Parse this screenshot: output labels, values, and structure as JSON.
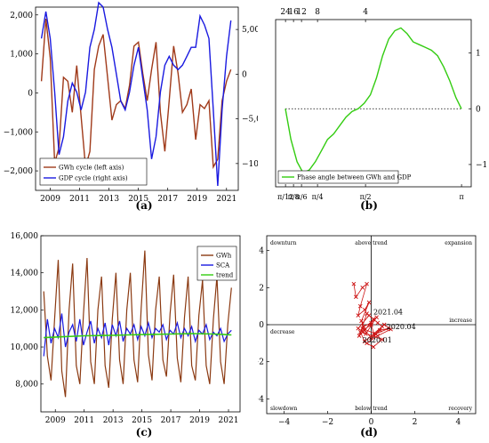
{
  "chart_data": [
    {
      "id": "a",
      "type": "line",
      "caption": "(a)",
      "x_ticks": [
        "2009",
        "2011",
        "2013",
        "2015",
        "2017",
        "2019",
        "2021"
      ],
      "x_range": [
        2008,
        2021.8
      ],
      "y_left_ticks": [
        "2,000",
        "1,000",
        "0",
        "−1,000",
        "−2,000"
      ],
      "y_left_range": [
        -2500,
        2200
      ],
      "y_right_ticks": [
        "5,000",
        "0",
        "−5,000",
        "−10,000"
      ],
      "y_right_range": [
        -13000,
        7500
      ],
      "legend": [
        "GWh cycle (left axis)",
        "GDP cycle (right axis)"
      ],
      "legend_position": "bottom-left",
      "colors": [
        "#a03a1a",
        "#1a1ae0"
      ],
      "series": [
        {
          "name": "GWh cycle (left axis)",
          "axis": "left",
          "x": [
            2008.4,
            2008.7,
            2009.0,
            2009.3,
            2009.6,
            2009.9,
            2010.2,
            2010.5,
            2010.8,
            2011.1,
            2011.4,
            2011.7,
            2012.0,
            2012.3,
            2012.6,
            2012.9,
            2013.2,
            2013.5,
            2013.8,
            2014.1,
            2014.4,
            2014.7,
            2015.0,
            2015.3,
            2015.6,
            2015.9,
            2016.2,
            2016.5,
            2016.8,
            2017.1,
            2017.4,
            2017.7,
            2018.0,
            2018.3,
            2018.6,
            2018.9,
            2019.2,
            2019.5,
            2019.8,
            2020.1,
            2020.4,
            2020.7,
            2021.0,
            2021.3
          ],
          "y": [
            300,
            1900,
            900,
            -1800,
            -1400,
            400,
            300,
            -500,
            700,
            -600,
            -1900,
            -1500,
            600,
            1200,
            1500,
            400,
            -700,
            -300,
            -200,
            -400,
            200,
            1200,
            1300,
            500,
            -200,
            600,
            1300,
            -500,
            -1500,
            -200,
            1200,
            500,
            -500,
            -300,
            100,
            -1200,
            -300,
            -400,
            -200,
            -1900,
            -1700,
            -200,
            300,
            600
          ]
        },
        {
          "name": "GDP cycle (right axis)",
          "axis": "right",
          "x": [
            2008.4,
            2008.7,
            2009.0,
            2009.3,
            2009.6,
            2009.9,
            2010.2,
            2010.5,
            2010.8,
            2011.1,
            2011.4,
            2011.7,
            2012.0,
            2012.3,
            2012.6,
            2012.9,
            2013.2,
            2013.5,
            2013.8,
            2014.1,
            2014.4,
            2014.7,
            2015.0,
            2015.3,
            2015.6,
            2015.9,
            2016.2,
            2016.5,
            2016.8,
            2017.1,
            2017.4,
            2017.7,
            2018.0,
            2018.3,
            2018.6,
            2018.9,
            2019.2,
            2019.5,
            2019.8,
            2020.1,
            2020.4,
            2020.7,
            2021.0,
            2021.3
          ],
          "y": [
            4000,
            7000,
            4000,
            -2000,
            -9000,
            -7000,
            -3000,
            -1000,
            -2000,
            -4000,
            -2000,
            3000,
            5000,
            8000,
            7500,
            5000,
            3000,
            0,
            -3000,
            -4000,
            -2000,
            1000,
            3000,
            -500,
            -4000,
            -9500,
            -7000,
            -2000,
            1000,
            2000,
            1000,
            500,
            1000,
            2000,
            3000,
            3000,
            6500,
            5500,
            4000,
            -4000,
            -12500,
            -4000,
            2000,
            6000
          ]
        }
      ]
    },
    {
      "id": "b",
      "type": "line",
      "caption": "(b)",
      "x_ticks": [
        "π/12",
        "π/8",
        "π/6",
        "π/4",
        "π/2",
        "π"
      ],
      "x_tick_values": [
        0.2618,
        0.3927,
        0.5236,
        0.7854,
        1.5708,
        3.1416
      ],
      "x_range": [
        0.1,
        3.3
      ],
      "top_ticks": [
        "24",
        "16",
        "12",
        "8",
        "4"
      ],
      "y_ticks": [
        "1",
        "0",
        "−1"
      ],
      "y_range": [
        -1.4,
        1.6
      ],
      "zero_line": true,
      "legend": [
        "Phase angle between GWh and GDP"
      ],
      "legend_position": "bottom-left",
      "colors": [
        "#33cc11"
      ],
      "series": [
        {
          "name": "Phase angle between GWh and GDP",
          "x": [
            0.26,
            0.35,
            0.45,
            0.55,
            0.65,
            0.75,
            0.85,
            0.95,
            1.05,
            1.15,
            1.25,
            1.35,
            1.45,
            1.55,
            1.65,
            1.75,
            1.85,
            1.95,
            2.05,
            2.15,
            2.25,
            2.35,
            2.45,
            2.55,
            2.65,
            2.75,
            2.85,
            2.95,
            3.05,
            3.14
          ],
          "y": [
            0.0,
            -0.55,
            -0.95,
            -1.15,
            -1.1,
            -0.95,
            -0.75,
            -0.55,
            -0.45,
            -0.3,
            -0.15,
            -0.05,
            0.0,
            0.1,
            0.25,
            0.55,
            0.95,
            1.25,
            1.4,
            1.45,
            1.35,
            1.2,
            1.15,
            1.1,
            1.05,
            0.95,
            0.75,
            0.5,
            0.2,
            0.0
          ]
        }
      ]
    },
    {
      "id": "c",
      "type": "line",
      "caption": "(c)",
      "x_ticks": [
        "2009",
        "2011",
        "2013",
        "2015",
        "2017",
        "2019",
        "2021"
      ],
      "x_range": [
        2008,
        2021.8
      ],
      "y_ticks": [
        "16,000",
        "14,000",
        "12,000",
        "10,000",
        "8,000"
      ],
      "y_range": [
        6500,
        16000
      ],
      "legend": [
        "GWh",
        "SCA",
        "trend"
      ],
      "legend_position": "top-right",
      "colors": [
        "#8b3a12",
        "#1a1ae0",
        "#33cc11"
      ],
      "series": [
        {
          "name": "GWh",
          "x": [
            2008.2,
            2008.45,
            2008.7,
            2008.95,
            2009.2,
            2009.45,
            2009.7,
            2009.95,
            2010.2,
            2010.45,
            2010.7,
            2010.95,
            2011.2,
            2011.45,
            2011.7,
            2011.95,
            2012.2,
            2012.45,
            2012.7,
            2012.95,
            2013.2,
            2013.45,
            2013.7,
            2013.95,
            2014.2,
            2014.45,
            2014.7,
            2014.95,
            2015.2,
            2015.45,
            2015.7,
            2015.95,
            2016.2,
            2016.45,
            2016.7,
            2016.95,
            2017.2,
            2017.45,
            2017.7,
            2017.95,
            2018.2,
            2018.45,
            2018.7,
            2018.95,
            2019.2,
            2019.45,
            2019.7,
            2019.95,
            2020.2,
            2020.45,
            2020.7,
            2020.95,
            2021.2
          ],
          "y": [
            13000,
            9500,
            8200,
            11500,
            14700,
            8700,
            7300,
            12000,
            14500,
            9000,
            8000,
            11800,
            14800,
            9200,
            8000,
            12000,
            13800,
            9000,
            7800,
            11500,
            14000,
            9300,
            8000,
            12000,
            14000,
            9300,
            8100,
            12100,
            15200,
            9600,
            8200,
            12000,
            13800,
            9300,
            8400,
            11800,
            13900,
            9400,
            8100,
            11600,
            13800,
            9000,
            8200,
            11700,
            13600,
            9000,
            8000,
            11500,
            13800,
            9200,
            8000,
            11200,
            13200
          ]
        },
        {
          "name": "SCA",
          "x": [
            2008.2,
            2008.45,
            2008.7,
            2008.95,
            2009.2,
            2009.45,
            2009.7,
            2009.95,
            2010.2,
            2010.45,
            2010.7,
            2010.95,
            2011.2,
            2011.45,
            2011.7,
            2011.95,
            2012.2,
            2012.45,
            2012.7,
            2012.95,
            2013.2,
            2013.45,
            2013.7,
            2013.95,
            2014.2,
            2014.45,
            2014.7,
            2014.95,
            2015.2,
            2015.45,
            2015.7,
            2015.95,
            2016.2,
            2016.45,
            2016.7,
            2016.95,
            2017.2,
            2017.45,
            2017.7,
            2017.95,
            2018.2,
            2018.45,
            2018.7,
            2018.95,
            2019.2,
            2019.45,
            2019.7,
            2019.95,
            2020.2,
            2020.45,
            2020.7,
            2020.95,
            2021.2
          ],
          "y": [
            9500,
            11500,
            10200,
            11000,
            10500,
            11800,
            10000,
            10800,
            11200,
            10300,
            11500,
            10100,
            10800,
            11400,
            10200,
            11000,
            10500,
            11300,
            10100,
            11200,
            10600,
            11400,
            10300,
            11000,
            10700,
            11200,
            10400,
            11100,
            10600,
            11300,
            10500,
            11000,
            10800,
            11200,
            10400,
            10900,
            10700,
            11300,
            10500,
            11000,
            10600,
            11100,
            10300,
            10900,
            10700,
            11200,
            10400,
            10800,
            10600,
            11000,
            10300,
            10700,
            10900
          ]
        },
        {
          "name": "trend",
          "x": [
            2008.2,
            2009.5,
            2011.0,
            2012.5,
            2014.0,
            2015.5,
            2017.0,
            2018.5,
            2020.0,
            2021.2
          ],
          "y": [
            10500,
            10550,
            10600,
            10620,
            10650,
            10680,
            10700,
            10720,
            10700,
            10650
          ]
        }
      ]
    },
    {
      "id": "d",
      "type": "scatter",
      "caption": "(d)",
      "x_ticks": [
        "−4",
        "−2",
        "0",
        "2",
        "4"
      ],
      "x_range": [
        -4.8,
        4.8
      ],
      "y_ticks": [
        "4",
        "2",
        "0",
        "−2",
        "−4"
      ],
      "y_range": [
        -4.8,
        4.8
      ],
      "quadrant_labels": {
        "top_left": "downturn",
        "top_center": "above trend",
        "top_right": "expansion",
        "middle_left": "decrease",
        "middle_right": "increase",
        "bottom_left": "slowdown",
        "bottom_center": "below trend",
        "bottom_right": "recovery"
      },
      "annotations": [
        {
          "text": "2021.04",
          "x": 0.1,
          "y": 0.55
        },
        {
          "text": "2020.04",
          "x": 0.7,
          "y": -0.25
        },
        {
          "text": "2020.01",
          "x": -0.4,
          "y": -0.95
        }
      ],
      "colors": [
        "#cc1111"
      ],
      "series": [
        {
          "name": "",
          "x": [
            -0.8,
            -0.7,
            -0.4,
            -0.2,
            -0.5,
            -0.6,
            -0.3,
            -0.1,
            -0.45,
            -0.3,
            0.1,
            -0.2,
            -0.55,
            -0.35,
            0.0,
            0.25,
            -0.25,
            -0.6,
            -0.1,
            0.3,
            0.5,
            -0.3,
            -0.5,
            0.0,
            0.15,
            0.4,
            0.8,
            0.2,
            -0.4,
            0.0,
            0.6,
            0.9,
            0.3,
            -0.2,
            0.1,
            0.5,
            -0.4
          ],
          "y": [
            2.2,
            1.5,
            2.0,
            2.2,
            1.0,
            0.5,
            0.8,
            1.2,
            0.2,
            -0.3,
            0.3,
            0.6,
            -0.6,
            -0.1,
            0.1,
            0.4,
            -0.5,
            -0.2,
            0.5,
            0.1,
            -0.1,
            -0.9,
            -0.4,
            0.0,
            -0.6,
            -0.3,
            -0.2,
            -0.5,
            -0.2,
            -0.7,
            0.0,
            -0.25,
            -0.6,
            -1.0,
            -1.2,
            -0.8,
            -0.4
          ]
        }
      ]
    }
  ]
}
